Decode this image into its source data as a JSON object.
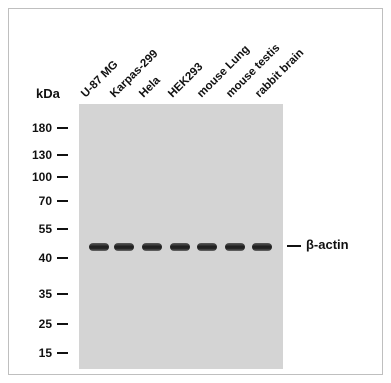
{
  "axis_unit": "kDa",
  "lanes": [
    "U-87 MG",
    "Karpas-299",
    "Hela",
    "HEK293",
    "mouse Lung",
    "mouse testis",
    "rabbit brain"
  ],
  "markers": [
    "180",
    "130",
    "100",
    "70",
    "55",
    "40",
    "35",
    "25",
    "15"
  ],
  "target": "β-actin",
  "colors": {
    "membrane": "#d4d4d4",
    "band": "#1e1e1e",
    "text": "#111111"
  }
}
